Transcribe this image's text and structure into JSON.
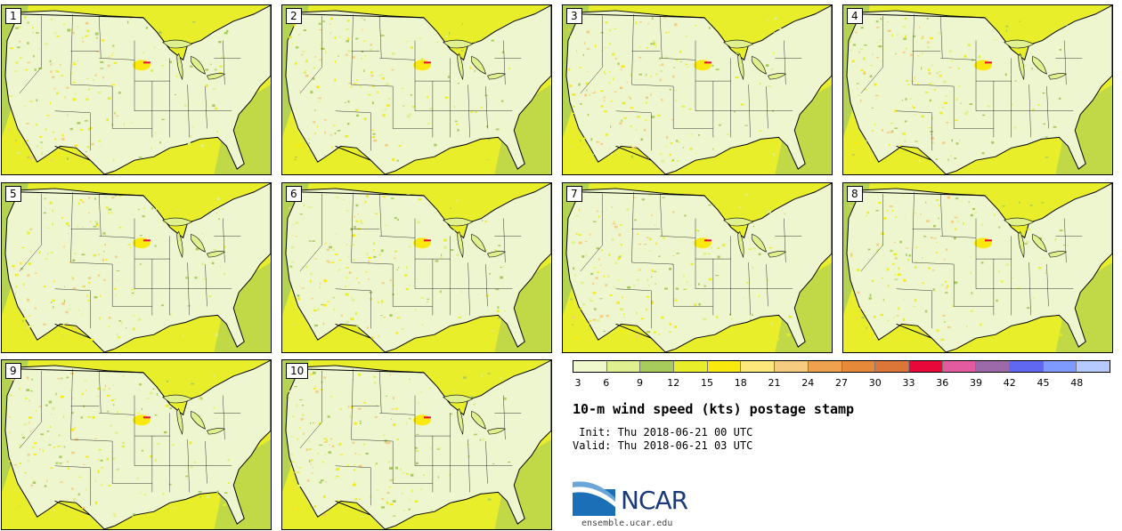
{
  "panels": [
    {
      "label": "1"
    },
    {
      "label": "2"
    },
    {
      "label": "3"
    },
    {
      "label": "4"
    },
    {
      "label": "5"
    },
    {
      "label": "6"
    },
    {
      "label": "7"
    },
    {
      "label": "8"
    },
    {
      "label": "9"
    },
    {
      "label": "10"
    }
  ],
  "colorbar": {
    "ticks": [
      "3",
      "6",
      "9",
      "12",
      "15",
      "18",
      "21",
      "24",
      "27",
      "30",
      "33",
      "36",
      "39",
      "42",
      "45",
      "48"
    ],
    "colors": [
      "#eff7cc",
      "#e0f08f",
      "#a8cc5c",
      "#e8ee2a",
      "#f9e90c",
      "#fde87c",
      "#f6cc80",
      "#efa24e",
      "#e68a3a",
      "#dc7638",
      "#e8083a",
      "#e25aa0",
      "#9c6aa8",
      "#6068f2",
      "#7e9aff",
      "#b6caff"
    ]
  },
  "title": "10-m wind speed (kts) postage stamp",
  "init": " Init: Thu 2018-06-21 00 UTC",
  "valid": "Valid: Thu 2018-06-21 03 UTC",
  "logo": {
    "text": "NCAR",
    "url": "ensemble.ucar.edu"
  },
  "colors": {
    "land": "#eef6cf",
    "ocean": "#e8ee2a",
    "ocean_light": "#a8cc5c",
    "border": "#000000"
  }
}
